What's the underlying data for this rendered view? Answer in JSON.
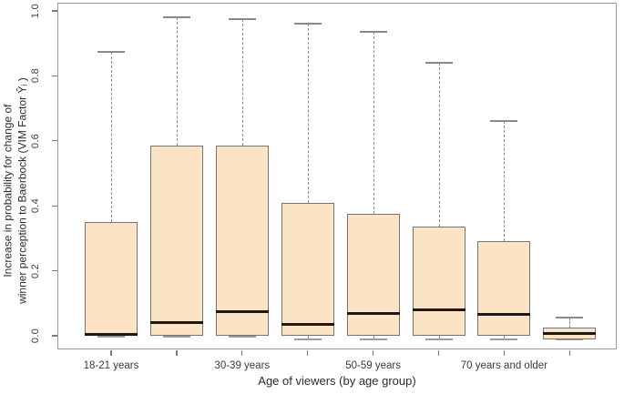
{
  "chart_data": {
    "type": "boxplot",
    "title": "",
    "xlabel": "Age of viewers (by age group)",
    "ylabel_line1": "Increase in probability for change of",
    "ylabel_line2": "winner perception to Baerbock (VIM Factor Ŷᵢ )",
    "y_ticks": [
      {
        "value": 0.0,
        "label": "0.0"
      },
      {
        "value": 0.2,
        "label": "0.2"
      },
      {
        "value": 0.4,
        "label": "0.4"
      },
      {
        "value": 0.6,
        "label": "0.6"
      },
      {
        "value": 0.8,
        "label": "0.8"
      },
      {
        "value": 1.0,
        "label": "1.0"
      }
    ],
    "ylim": [
      -0.045,
      1.02
    ],
    "grid": false,
    "legend": "none",
    "groups": [
      {
        "label": "18-21 years",
        "min": 0.0,
        "q1": 0.0,
        "median": 0.005,
        "q3": 0.35,
        "max": 0.875
      },
      {
        "label": "",
        "min": 0.0,
        "q1": 0.0,
        "median": 0.04,
        "q3": 0.585,
        "max": 0.98
      },
      {
        "label": "30-39 years",
        "min": 0.0,
        "q1": 0.0,
        "median": 0.075,
        "q3": 0.585,
        "max": 0.975
      },
      {
        "label": "",
        "min": -0.01,
        "q1": 0.0,
        "median": 0.035,
        "q3": 0.41,
        "max": 0.96
      },
      {
        "label": "50-59 years",
        "min": -0.01,
        "q1": 0.0,
        "median": 0.07,
        "q3": 0.375,
        "max": 0.935
      },
      {
        "label": "",
        "min": -0.01,
        "q1": 0.0,
        "median": 0.08,
        "q3": 0.335,
        "max": 0.84
      },
      {
        "label": "70 years and older",
        "min": -0.01,
        "q1": 0.0,
        "median": 0.065,
        "q3": 0.29,
        "max": 0.66
      },
      {
        "label": "",
        "min": -0.01,
        "q1": -0.01,
        "median": 0.007,
        "q3": 0.025,
        "max": 0.055
      }
    ],
    "colors": {
      "box_fill": "#fce3c5",
      "box_border": "#757575",
      "median": "#191919",
      "whisker": "#8a8a8a",
      "frame": "#9a9a9a",
      "text": "#2b2b2b"
    }
  }
}
